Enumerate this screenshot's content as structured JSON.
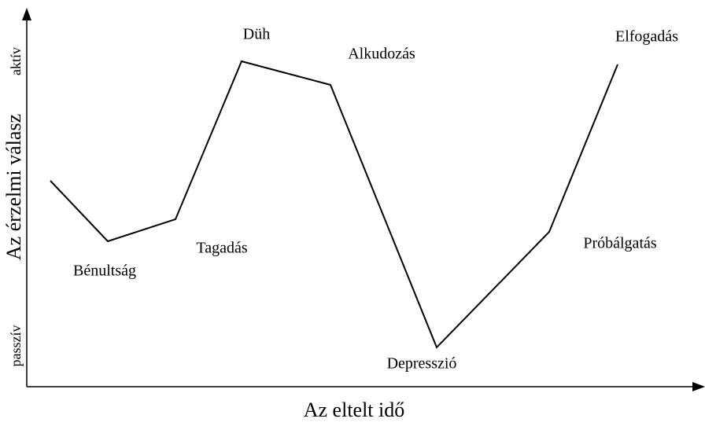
{
  "axes": {
    "y_label": "Az érzelmi válasz",
    "x_label": "Az eltelt idő",
    "y_top": "aktív",
    "y_bottom": "passzív"
  },
  "nodes": [
    {
      "label": "Bénultság"
    },
    {
      "label": "Tagadás"
    },
    {
      "label": "Düh"
    },
    {
      "label": "Alkudozás"
    },
    {
      "label": "Depresszió"
    },
    {
      "label": "Próbálgatás"
    },
    {
      "label": "Elfogadás"
    }
  ]
}
